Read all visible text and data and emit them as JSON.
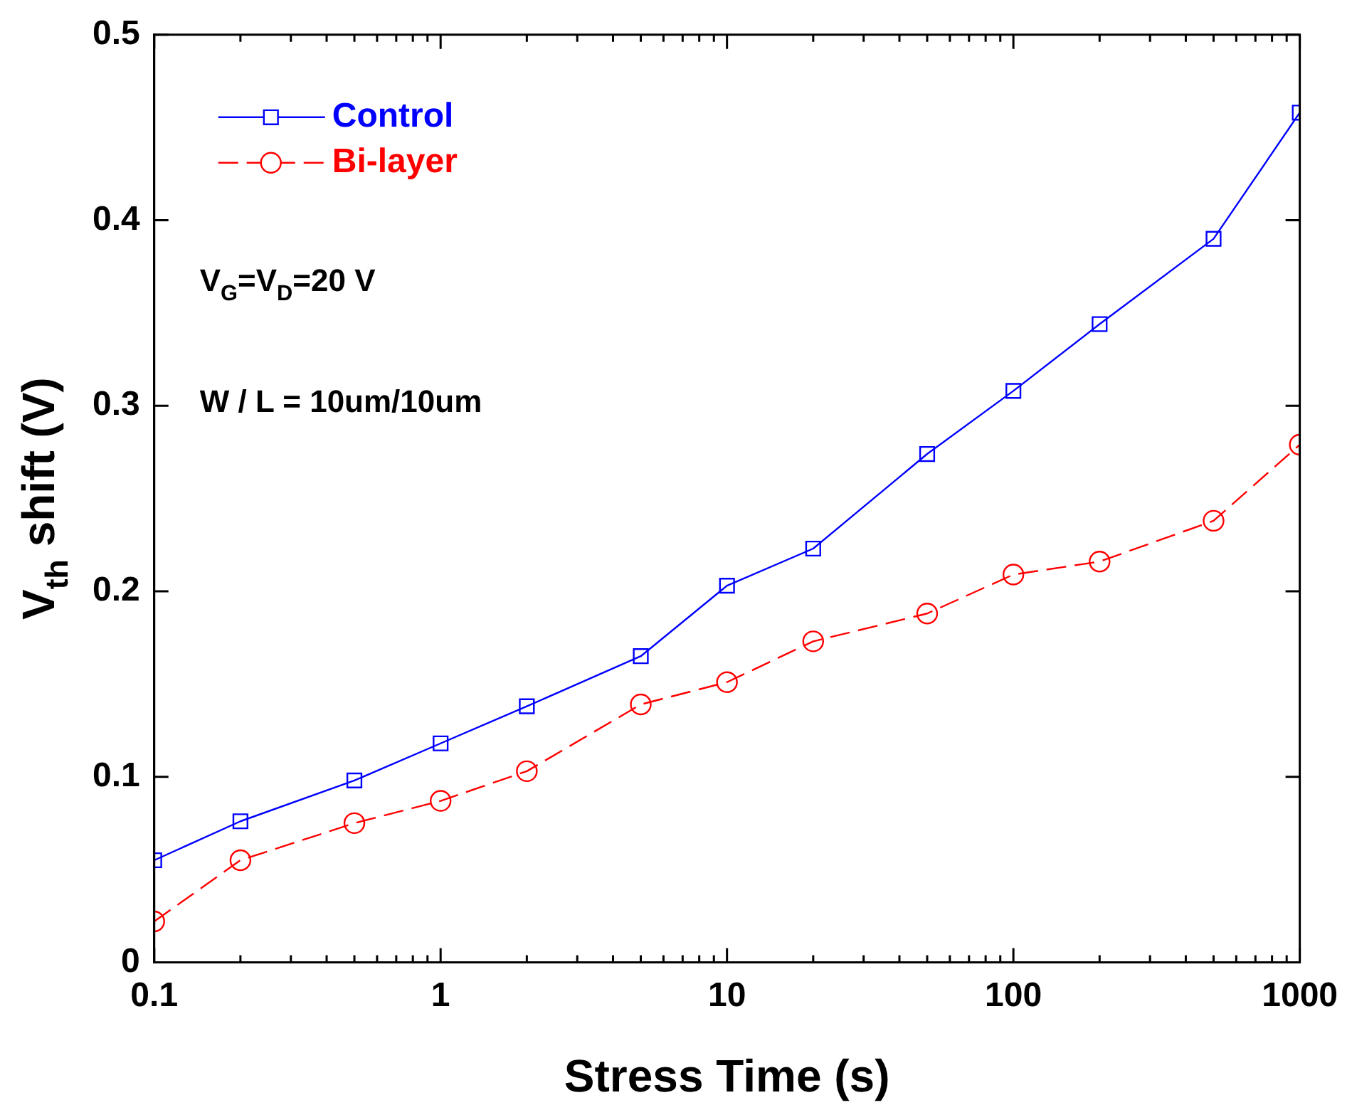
{
  "chart_data": {
    "type": "line",
    "xlabel": "Stress Time (s)",
    "ylabel": "V$_{th}$ shift (V)",
    "log": "x",
    "x": [
      0.1,
      0.2,
      0.5,
      1,
      2,
      5,
      10,
      20,
      50,
      100,
      200,
      500,
      1000
    ],
    "xlim": [
      0.1,
      1000
    ],
    "xticks": [
      0.1,
      1,
      10,
      100,
      1000
    ],
    "ylim": [
      0,
      0.5
    ],
    "yticks": [
      0,
      0.1,
      0.2,
      0.3,
      0.4,
      0.5
    ],
    "grid": false,
    "legend": "top left",
    "annotations": [
      "V$_{G}$=V$_{D}$=20 V",
      "W / L = 10um/10um"
    ],
    "series": [
      {
        "name": "Control",
        "color": "#0000ff",
        "marker": "square",
        "line_style": "solid",
        "values": [
          0.055,
          0.076,
          0.098,
          0.118,
          0.138,
          0.165,
          0.203,
          0.223,
          0.274,
          0.308,
          0.344,
          0.39,
          0.458
        ]
      },
      {
        "name": "Bi-layer",
        "color": "#ff0000",
        "marker": "circle",
        "line_style": "dashed",
        "values": [
          0.022,
          0.055,
          0.075,
          0.087,
          0.103,
          0.139,
          0.151,
          0.173,
          0.188,
          0.209,
          0.216,
          0.238,
          0.279
        ]
      }
    ]
  }
}
